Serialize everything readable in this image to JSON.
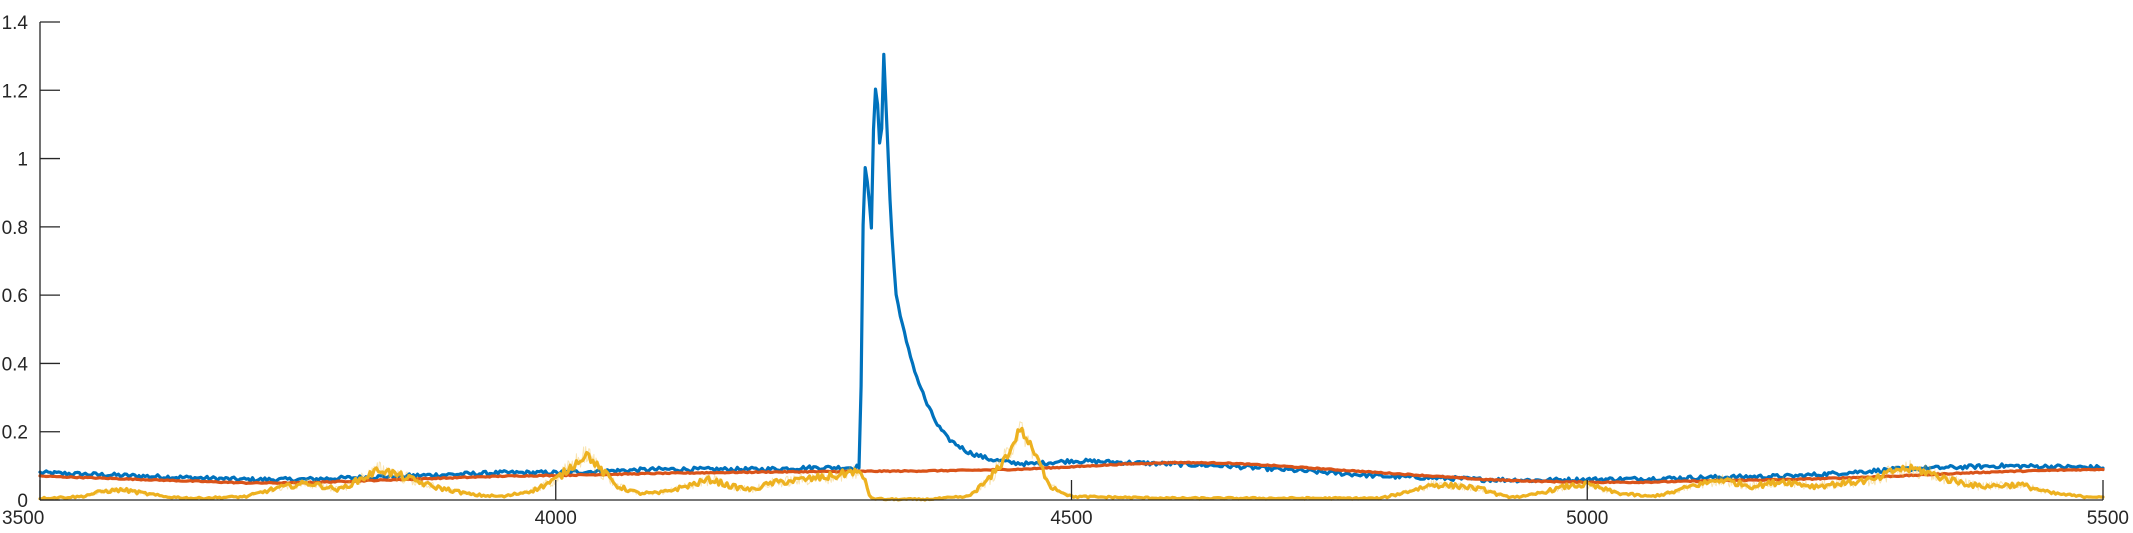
{
  "chart_data": {
    "type": "line",
    "title": "",
    "xlabel": "",
    "ylabel": "",
    "xlim": [
      3500,
      5500
    ],
    "ylim": [
      0,
      1.4
    ],
    "grid": false,
    "legend": "none",
    "x_ticks": [
      3500,
      4000,
      4500,
      5000,
      5500
    ],
    "y_ticks": [
      0,
      0.2,
      0.4,
      0.6,
      0.8,
      1,
      1.2,
      1.4
    ],
    "x_tick_labels": [
      "3500",
      "4000",
      "4500",
      "5000",
      "5500"
    ],
    "y_tick_labels": [
      "0",
      "0.2",
      "0.4",
      "0.6",
      "0.8",
      "1",
      "1.2",
      "1.4"
    ],
    "series": [
      {
        "color": "#0072BD",
        "x": [
          3500,
          3550,
          3600,
          3650,
          3700,
          3750,
          3800,
          3850,
          3900,
          3950,
          4000,
          4050,
          4100,
          4150,
          4200,
          4250,
          4290,
          4295,
          4298,
          4300,
          4303,
          4306,
          4309,
          4312,
          4315,
          4318,
          4321,
          4324,
          4327,
          4330,
          4340,
          4350,
          4360,
          4370,
          4380,
          4400,
          4420,
          4440,
          4460,
          4480,
          4500,
          4550,
          4600,
          4650,
          4700,
          4750,
          4800,
          4850,
          4900,
          4950,
          5000,
          5050,
          5100,
          5150,
          5200,
          5250,
          5300,
          5350,
          5400,
          5450,
          5500
        ],
        "values": [
          0.08,
          0.075,
          0.07,
          0.065,
          0.06,
          0.06,
          0.065,
          0.07,
          0.075,
          0.08,
          0.08,
          0.085,
          0.09,
          0.09,
          0.09,
          0.095,
          0.095,
          0.1,
          0.8,
          0.97,
          0.92,
          0.8,
          1.22,
          1.16,
          0.98,
          1.31,
          1.1,
          0.88,
          0.72,
          0.6,
          0.46,
          0.36,
          0.28,
          0.22,
          0.18,
          0.14,
          0.12,
          0.11,
          0.105,
          0.11,
          0.115,
          0.11,
          0.105,
          0.1,
          0.09,
          0.08,
          0.07,
          0.065,
          0.06,
          0.058,
          0.06,
          0.062,
          0.065,
          0.068,
          0.07,
          0.08,
          0.09,
          0.095,
          0.1,
          0.098,
          0.095
        ]
      },
      {
        "color": "#D95319",
        "x": [
          3500,
          3550,
          3600,
          3650,
          3700,
          3750,
          3800,
          3850,
          3900,
          3950,
          4000,
          4050,
          4100,
          4150,
          4200,
          4250,
          4300,
          4350,
          4400,
          4450,
          4500,
          4550,
          4600,
          4650,
          4700,
          4750,
          4800,
          4850,
          4900,
          4950,
          5000,
          5050,
          5100,
          5150,
          5200,
          5250,
          5300,
          5350,
          5400,
          5450,
          5500
        ],
        "values": [
          0.07,
          0.065,
          0.06,
          0.055,
          0.05,
          0.05,
          0.055,
          0.06,
          0.065,
          0.07,
          0.072,
          0.075,
          0.078,
          0.08,
          0.082,
          0.083,
          0.084,
          0.085,
          0.087,
          0.09,
          0.097,
          0.105,
          0.11,
          0.108,
          0.1,
          0.09,
          0.08,
          0.07,
          0.06,
          0.055,
          0.052,
          0.052,
          0.055,
          0.058,
          0.06,
          0.065,
          0.07,
          0.077,
          0.083,
          0.087,
          0.09
        ]
      },
      {
        "color": "#EDB120",
        "x": [
          3500,
          3540,
          3560,
          3580,
          3600,
          3620,
          3650,
          3700,
          3730,
          3760,
          3790,
          3810,
          3830,
          3850,
          3880,
          3920,
          3950,
          3980,
          4000,
          4020,
          4030,
          4040,
          4060,
          4080,
          4100,
          4120,
          4150,
          4170,
          4190,
          4210,
          4240,
          4270,
          4290,
          4300,
          4305,
          4320,
          4360,
          4400,
          4420,
          4440,
          4450,
          4460,
          4480,
          4500,
          4600,
          4700,
          4800,
          4820,
          4850,
          4880,
          4900,
          4920,
          4940,
          4960,
          4980,
          5000,
          5030,
          5060,
          5080,
          5100,
          5130,
          5160,
          5190,
          5220,
          5250,
          5280,
          5300,
          5320,
          5350,
          5380,
          5420,
          5450,
          5480,
          5500
        ],
        "values": [
          0.005,
          0.01,
          0.025,
          0.03,
          0.02,
          0.01,
          0.005,
          0.01,
          0.035,
          0.05,
          0.03,
          0.06,
          0.09,
          0.07,
          0.04,
          0.015,
          0.01,
          0.03,
          0.06,
          0.11,
          0.135,
          0.1,
          0.04,
          0.02,
          0.02,
          0.035,
          0.06,
          0.04,
          0.03,
          0.05,
          0.06,
          0.07,
          0.085,
          0.06,
          0.005,
          0.002,
          0.002,
          0.01,
          0.06,
          0.14,
          0.21,
          0.16,
          0.04,
          0.01,
          0.005,
          0.005,
          0.005,
          0.02,
          0.045,
          0.04,
          0.03,
          0.01,
          0.01,
          0.025,
          0.04,
          0.045,
          0.02,
          0.01,
          0.02,
          0.04,
          0.06,
          0.04,
          0.055,
          0.04,
          0.05,
          0.06,
          0.09,
          0.09,
          0.06,
          0.04,
          0.045,
          0.02,
          0.01,
          0.01
        ]
      }
    ]
  }
}
